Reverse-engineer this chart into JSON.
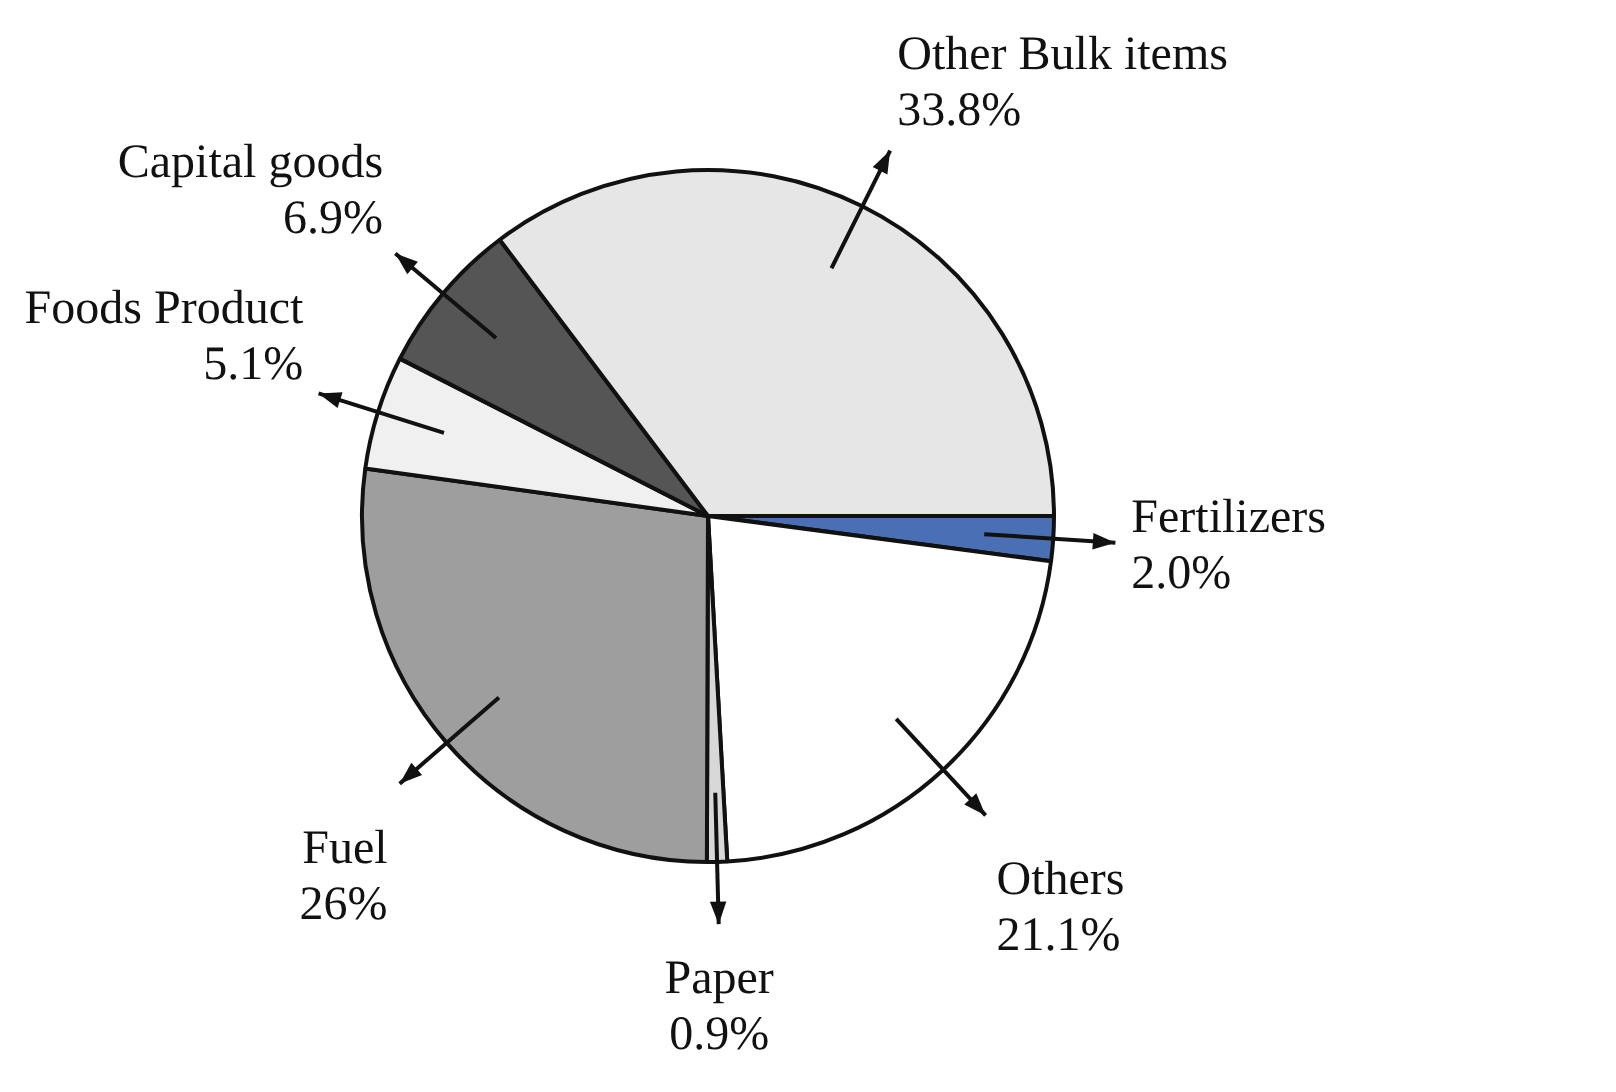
{
  "chart_data": {
    "type": "pie",
    "categories": [
      "Fertilizers",
      "Others",
      "Paper",
      "Fuel",
      "Foods Product",
      "Capital goods",
      "Other Bulk items"
    ],
    "values": [
      2.0,
      21.1,
      0.9,
      26,
      5.1,
      6.9,
      33.8
    ],
    "value_labels": [
      "2.0%",
      "21.1%",
      "0.9%",
      "26%",
      "5.1%",
      "6.9%",
      "33.8%"
    ],
    "colors": [
      "#4a6fb5",
      "#ffffff",
      "#d8d8d8",
      "#9e9e9e",
      "#f0f0f0",
      "#555555",
      "#e6e6e6"
    ]
  }
}
